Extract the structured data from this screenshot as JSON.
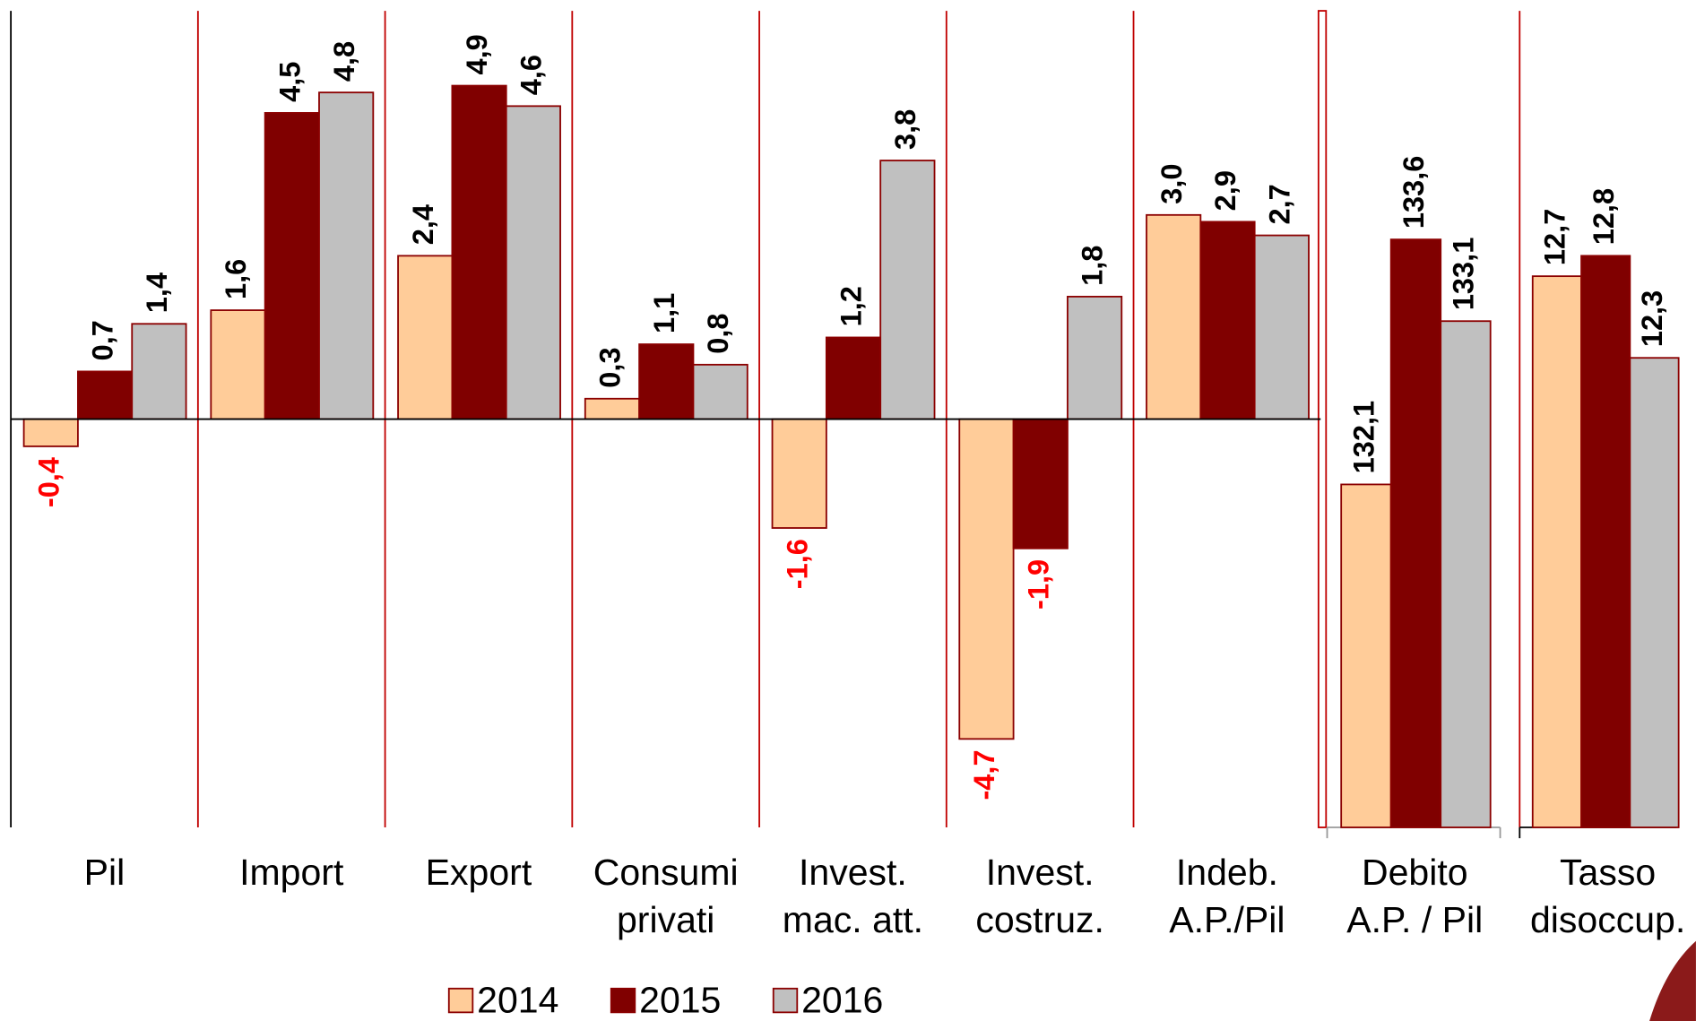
{
  "chart_data": [
    {
      "type": "bar",
      "categories": [
        "Pil",
        "Import",
        "Export",
        "Consumi\nprivati",
        "Invest.\nmac. att.",
        "Invest.\ncostruz.",
        "Indeb.\nA.P./Pil"
      ],
      "series": [
        {
          "name": "2014",
          "color": "#FFCC99",
          "values": [
            -0.4,
            1.6,
            2.4,
            0.3,
            -1.6,
            -4.7,
            3.0
          ],
          "value_labels": [
            "-0,4",
            "1,6",
            "2,4",
            "0,3",
            "-1,6",
            "-4,7",
            "3,0"
          ]
        },
        {
          "name": "2015",
          "color": "#800000",
          "values": [
            0.7,
            4.5,
            4.9,
            1.1,
            1.2,
            -1.9,
            2.9
          ],
          "value_labels": [
            "0,7",
            "4,5",
            "4,9",
            "1,1",
            "1,2",
            "-1,9",
            "2,9"
          ]
        },
        {
          "name": "2016",
          "color": "#C0C0C0",
          "values": [
            1.4,
            4.8,
            4.6,
            0.8,
            3.8,
            1.8,
            2.7
          ],
          "value_labels": [
            "1,4",
            "4,8",
            "4,6",
            "0,8",
            "3,8",
            "1,8",
            "2,7"
          ]
        }
      ],
      "ylim": [
        -6,
        6
      ]
    },
    {
      "type": "bar",
      "categories": [
        "Debito\nA.P.  / Pil"
      ],
      "series": [
        {
          "color": "#FFCC99",
          "values": [
            132.1
          ],
          "value_labels": [
            "132,1"
          ]
        },
        {
          "color": "#800000",
          "values": [
            133.6
          ],
          "value_labels": [
            "133,6"
          ]
        },
        {
          "color": "#C0C0C0",
          "values": [
            133.1
          ],
          "value_labels": [
            "133,1"
          ]
        }
      ],
      "ylim": [
        130,
        135
      ]
    },
    {
      "type": "bar",
      "categories": [
        "Tasso\ndisoccup."
      ],
      "series": [
        {
          "color": "#FFCC99",
          "values": [
            12.7
          ],
          "value_labels": [
            "12,7"
          ]
        },
        {
          "color": "#800000",
          "values": [
            12.8
          ],
          "value_labels": [
            "12,8"
          ]
        },
        {
          "color": "#C0C0C0",
          "values": [
            12.3
          ],
          "value_labels": [
            "12,3"
          ]
        }
      ],
      "ylim": [
        10,
        14
      ]
    }
  ]
}
